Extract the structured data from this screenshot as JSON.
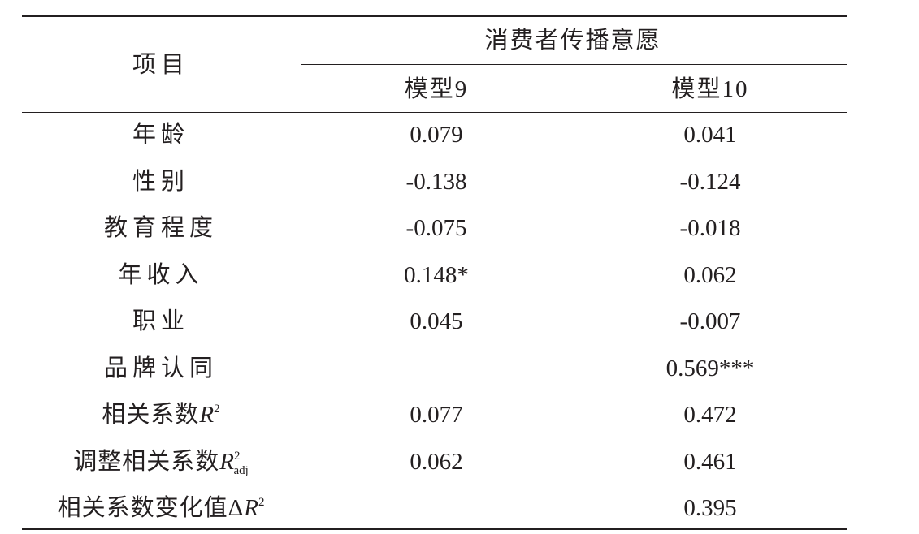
{
  "header": {
    "item": "项目",
    "group": "消费者传播意愿",
    "columns": [
      "模型9",
      "模型10"
    ]
  },
  "table": {
    "rows": [
      {
        "label": {
          "text": "年龄"
        },
        "cells": [
          "0.079",
          "0.041"
        ]
      },
      {
        "label": {
          "text": "性别"
        },
        "cells": [
          "-0.138",
          "-0.124"
        ]
      },
      {
        "label": {
          "text": "教育程度"
        },
        "cells": [
          "-0.075",
          "-0.018"
        ]
      },
      {
        "label": {
          "text": "年收入"
        },
        "cells": [
          "0.148*",
          "0.062"
        ]
      },
      {
        "label": {
          "text": "职业"
        },
        "cells": [
          "0.045",
          "-0.007"
        ]
      },
      {
        "label": {
          "text": "品牌认同"
        },
        "cells": [
          null,
          "0.569***"
        ]
      },
      {
        "label": {
          "text": "相关系数",
          "var": "R",
          "sup": "2"
        },
        "cells": [
          "0.077",
          "0.472"
        ]
      },
      {
        "label": {
          "text": "调整相关系数",
          "var": "R",
          "sup": "2",
          "sub": "adj"
        },
        "cells": [
          "0.062",
          "0.461"
        ]
      },
      {
        "label": {
          "text": "相关系数变化值Δ",
          "var": "R",
          "sup": "2"
        },
        "cells": [
          null,
          "0.395"
        ]
      }
    ]
  }
}
